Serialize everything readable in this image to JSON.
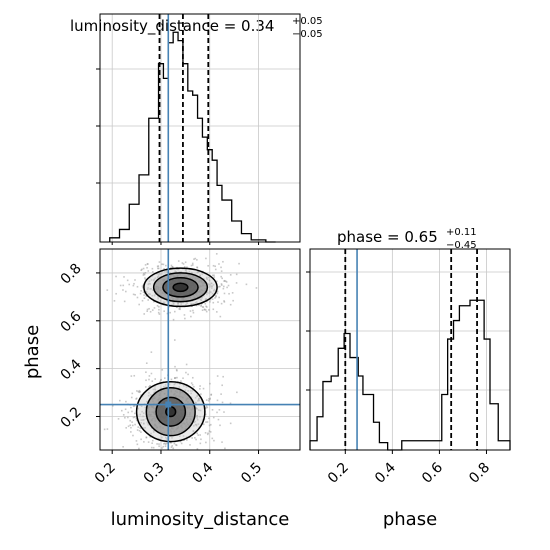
{
  "chart_data": {
    "type": "corner",
    "parameters": [
      "luminosity_distance",
      "phase"
    ],
    "truth": {
      "luminosity_distance": 0.315,
      "phase": 0.25
    },
    "truth_color": "#4682b4",
    "panels": [
      {
        "id": "lumdist-hist",
        "type": "histogram",
        "parameter": "luminosity_distance",
        "title": {
          "main": "luminosity_distance = 0.34",
          "sup": "+0.05",
          "sub": "−0.05"
        },
        "xlim": [
          0.175,
          0.585
        ],
        "quantile_lines": [
          0.297,
          0.345,
          0.397
        ],
        "bin_edges": [
          0.195,
          0.215,
          0.235,
          0.255,
          0.275,
          0.295,
          0.305,
          0.315,
          0.325,
          0.335,
          0.345,
          0.355,
          0.365,
          0.375,
          0.385,
          0.395,
          0.405,
          0.415,
          0.425,
          0.445,
          0.465,
          0.485,
          0.515,
          0.535
        ],
        "counts": [
          0.02,
          0.06,
          0.18,
          0.32,
          0.59,
          0.85,
          0.78,
          0.95,
          1.0,
          0.96,
          0.85,
          0.72,
          0.7,
          0.59,
          0.5,
          0.44,
          0.39,
          0.27,
          0.2,
          0.1,
          0.04,
          0.01,
          0.0
        ]
      },
      {
        "id": "phase-hist",
        "type": "histogram",
        "parameter": "phase",
        "title": {
          "main": "phase = 0.65",
          "sup": "+0.11",
          "sub": "−0.45"
        },
        "xlim": [
          0.05,
          0.9
        ],
        "quantile_lines": [
          0.2,
          0.65,
          0.76
        ],
        "bin_edges": [
          0.05,
          0.08,
          0.105,
          0.14,
          0.17,
          0.195,
          0.22,
          0.255,
          0.275,
          0.32,
          0.345,
          0.38,
          0.4,
          0.44,
          0.61,
          0.635,
          0.66,
          0.685,
          0.73,
          0.79,
          0.815,
          0.85,
          0.9
        ],
        "counts": [
          0.05,
          0.18,
          0.37,
          0.4,
          0.55,
          0.63,
          0.5,
          0.4,
          0.3,
          0.15,
          0.04,
          0.0,
          0.0,
          0.05,
          0.3,
          0.6,
          0.7,
          0.78,
          0.81,
          0.6,
          0.25,
          0.05
        ]
      },
      {
        "id": "joint",
        "type": "2d-density",
        "x": "luminosity_distance",
        "y": "phase",
        "xlim": [
          0.175,
          0.585
        ],
        "ylim": [
          0.06,
          0.9
        ],
        "modes": [
          {
            "center": [
              0.34,
              0.74
            ],
            "contour_half_widths": [
              [
                0.015,
                0.017
              ],
              [
                0.036,
                0.04
              ],
              [
                0.055,
                0.06
              ],
              [
                0.075,
                0.08
              ]
            ]
          },
          {
            "center": [
              0.32,
              0.22
            ],
            "contour_half_widths": [
              [
                0.01,
                0.02
              ],
              [
                0.03,
                0.06
              ],
              [
                0.05,
                0.1
              ],
              [
                0.07,
                0.125
              ]
            ]
          }
        ]
      }
    ],
    "x_ticks": {
      "luminosity_distance": [
        "0.2",
        "0.3",
        "0.4",
        "0.5"
      ],
      "phase": [
        "0.2",
        "0.4",
        "0.6",
        "0.8"
      ]
    },
    "y_ticks": {
      "phase": [
        "0.2",
        "0.4",
        "0.6",
        "0.8"
      ]
    },
    "xlabel": {
      "luminosity_distance": "luminosity_distance",
      "phase": "phase"
    },
    "ylabel": {
      "phase": "phase"
    },
    "grid": true
  }
}
